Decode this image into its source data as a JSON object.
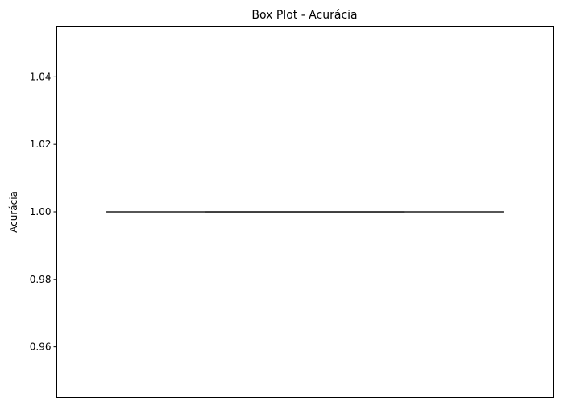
{
  "chart_data": {
    "type": "box",
    "title": "Box Plot - Acurácia",
    "xlabel": "",
    "ylabel": "Acurácia",
    "ylim": [
      0.945,
      1.055
    ],
    "yticks": [
      0.96,
      0.98,
      1.0,
      1.02,
      1.04
    ],
    "ytick_labels": [
      "0.96",
      "0.98",
      "1.00",
      "1.02",
      "1.04"
    ],
    "categories": [
      ""
    ],
    "boxes": [
      {
        "whisker_low": 1.0,
        "q1": 1.0,
        "median": 1.0,
        "q3": 1.0,
        "whisker_high": 1.0
      }
    ],
    "grid": false,
    "line_color": "#3f3f3f",
    "box_color": "#1f77b4"
  }
}
